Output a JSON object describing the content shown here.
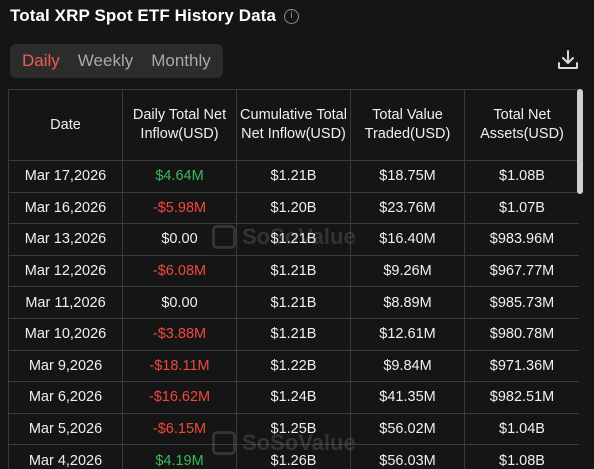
{
  "header": {
    "title": "Total XRP Spot ETF History Data",
    "info_icon": "info-icon"
  },
  "tabs": [
    {
      "label": "Daily",
      "active": true
    },
    {
      "label": "Weekly",
      "active": false
    },
    {
      "label": "Monthly",
      "active": false
    }
  ],
  "download_icon": "download-icon",
  "watermark_text": "SoSoValue",
  "colors": {
    "background": "#151515",
    "positive": "#3bb85c",
    "negative": "#f0483e",
    "active_tab": "#ef5b52"
  },
  "table": {
    "headers": {
      "date": "Date",
      "daily_inflow": "Daily Total Net Inflow(USD)",
      "cumulative_inflow": "Cumulative Total Net Inflow(USD)",
      "value_traded": "Total Value Traded(USD)",
      "net_assets": "Total Net Assets(USD)"
    },
    "rows": [
      {
        "date": "Mar 17,2026",
        "daily": "$4.64M",
        "trend": "pos",
        "cumulative": "$1.21B",
        "traded": "$18.75M",
        "assets": "$1.08B"
      },
      {
        "date": "Mar 16,2026",
        "daily": "-$5.98M",
        "trend": "neg",
        "cumulative": "$1.20B",
        "traded": "$23.76M",
        "assets": "$1.07B"
      },
      {
        "date": "Mar 13,2026",
        "daily": "$0.00",
        "trend": "neutral",
        "cumulative": "$1.21B",
        "traded": "$16.40M",
        "assets": "$983.96M"
      },
      {
        "date": "Mar 12,2026",
        "daily": "-$6.08M",
        "trend": "neg",
        "cumulative": "$1.21B",
        "traded": "$9.26M",
        "assets": "$967.77M"
      },
      {
        "date": "Mar 11,2026",
        "daily": "$0.00",
        "trend": "neutral",
        "cumulative": "$1.21B",
        "traded": "$8.89M",
        "assets": "$985.73M"
      },
      {
        "date": "Mar 10,2026",
        "daily": "-$3.88M",
        "trend": "neg",
        "cumulative": "$1.21B",
        "traded": "$12.61M",
        "assets": "$980.78M"
      },
      {
        "date": "Mar 9,2026",
        "daily": "-$18.11M",
        "trend": "neg",
        "cumulative": "$1.22B",
        "traded": "$9.84M",
        "assets": "$971.36M"
      },
      {
        "date": "Mar 6,2026",
        "daily": "-$16.62M",
        "trend": "neg",
        "cumulative": "$1.24B",
        "traded": "$41.35M",
        "assets": "$982.51M"
      },
      {
        "date": "Mar 5,2026",
        "daily": "-$6.15M",
        "trend": "neg",
        "cumulative": "$1.25B",
        "traded": "$56.02M",
        "assets": "$1.04B"
      },
      {
        "date": "Mar 4,2026",
        "daily": "$4.19M",
        "trend": "pos",
        "cumulative": "$1.26B",
        "traded": "$56.03M",
        "assets": "$1.08B"
      }
    ]
  }
}
